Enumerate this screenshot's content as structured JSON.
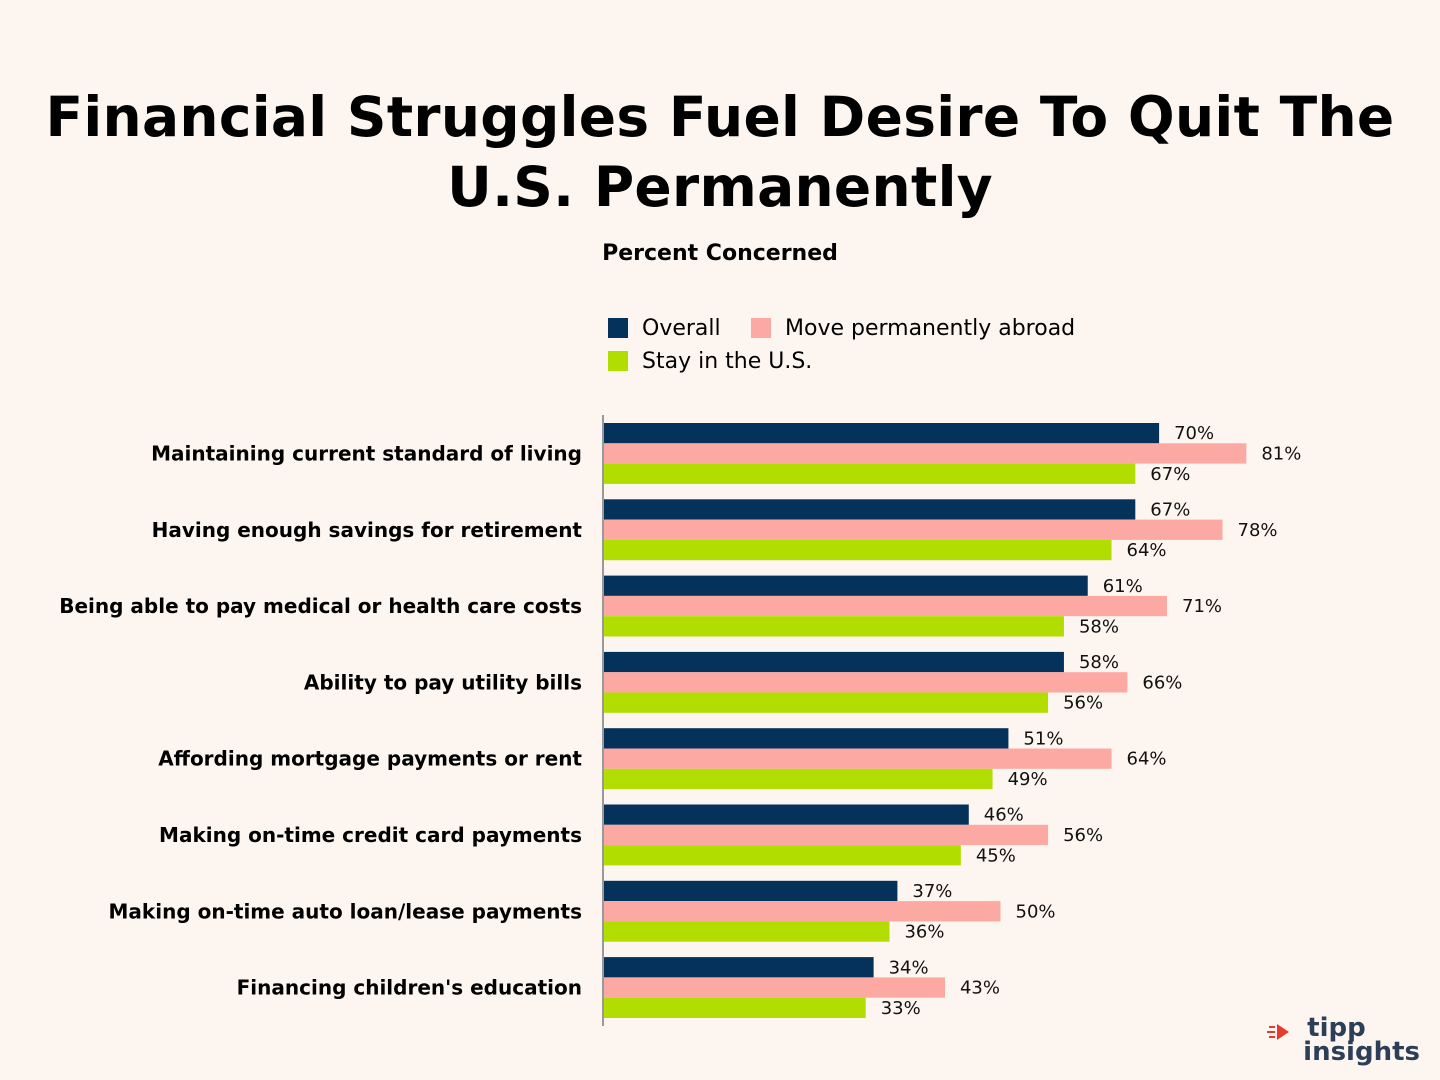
{
  "title_line1": "Financial Struggles Fuel Desire To Quit The",
  "title_line2": "U.S. Permanently",
  "chart_data": {
    "type": "bar",
    "orientation": "horizontal",
    "title": "Financial Struggles Fuel Desire To Quit The U.S. Permanently",
    "subtitle": "Percent Concerned",
    "categories": [
      "Maintaining current standard of living",
      "Having enough savings for retirement",
      "Being able to pay medical or health care costs",
      "Ability to pay utility bills",
      "Affording mortgage payments or rent",
      "Making on-time credit card payments",
      "Making on-time auto loan/lease payments",
      "Financing children's education"
    ],
    "series": [
      {
        "name": "Overall",
        "color": "#05325a",
        "values": [
          70,
          67,
          61,
          58,
          51,
          46,
          37,
          34
        ]
      },
      {
        "name": "Move permanently abroad",
        "color": "#fba9a2",
        "values": [
          81,
          78,
          71,
          66,
          64,
          56,
          50,
          43
        ]
      },
      {
        "name": "Stay in the U.S.",
        "color": "#b1dd00",
        "values": [
          67,
          64,
          58,
          56,
          49,
          45,
          36,
          33
        ]
      }
    ],
    "value_suffix": "%",
    "legend_position": "top",
    "grid": false
  },
  "logo": {
    "line1": "tipp",
    "line2": "insights",
    "brand_color": "#2c3e58",
    "accent_color": "#e63b2e"
  }
}
